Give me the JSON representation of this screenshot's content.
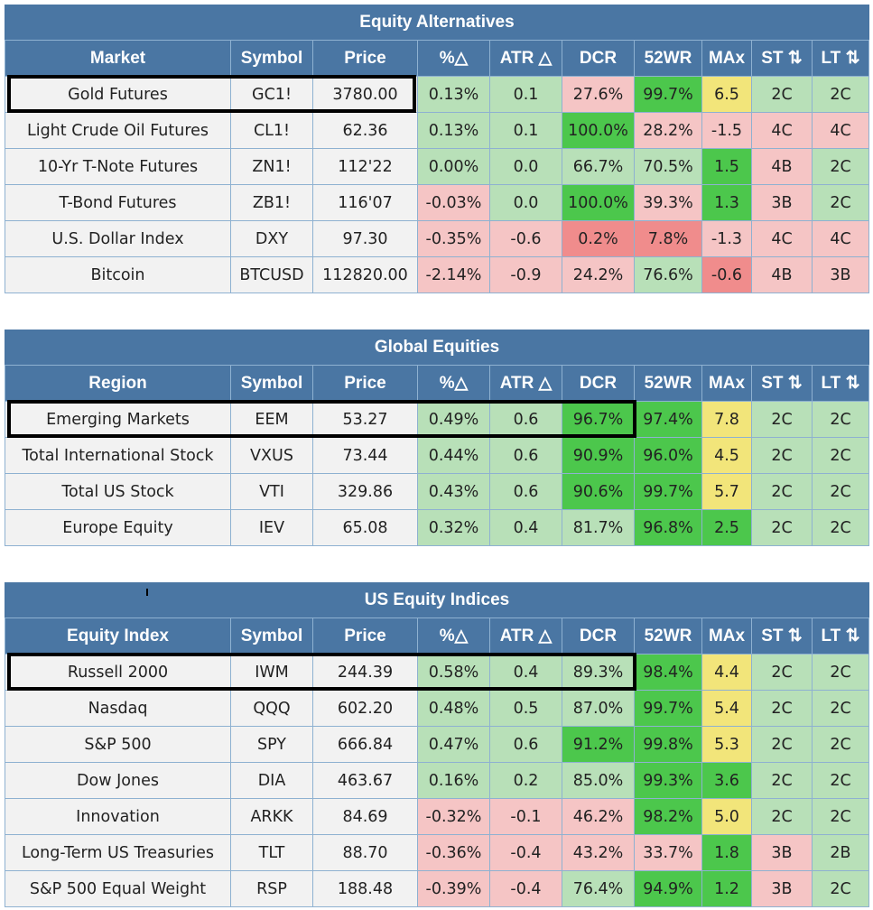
{
  "colors": {
    "header": "#4a76a3",
    "neutral": "#f2f2f2",
    "light_green": "#b8e0b8",
    "green": "#4cc74c",
    "light_red": "#f5c5c5",
    "red": "#f08c8c",
    "yellow": "#f2e57a"
  },
  "sections": [
    {
      "title": "Equity Alternatives",
      "headers": [
        "Market",
        "Symbol",
        "Price",
        "%△",
        "ATR △",
        "DCR",
        "52WR",
        "MAx",
        "ST ⇅",
        "LT ⇅"
      ],
      "rows": [
        {
          "cells": [
            "Gold Futures",
            "GC1!",
            "3780.00",
            "0.13%",
            "0.1",
            "27.6%",
            "99.7%",
            "6.5",
            "2C",
            "2C"
          ],
          "colors": [
            "n",
            "n",
            "n",
            "lg",
            "lg",
            "lr",
            "g",
            "y",
            "lg",
            "lg"
          ]
        },
        {
          "cells": [
            "Light Crude Oil Futures",
            "CL1!",
            "62.36",
            "0.13%",
            "0.1",
            "100.0%",
            "28.2%",
            "-1.5",
            "4C",
            "4C"
          ],
          "colors": [
            "n",
            "n",
            "n",
            "lg",
            "lg",
            "g",
            "lr",
            "lr",
            "lr",
            "lr"
          ]
        },
        {
          "cells": [
            "10-Yr T-Note Futures",
            "ZN1!",
            "112'22",
            "0.00%",
            "0.0",
            "66.7%",
            "70.5%",
            "1.5",
            "4B",
            "2C"
          ],
          "colors": [
            "n",
            "n",
            "n",
            "lg",
            "lg",
            "lg",
            "lg",
            "g",
            "lr",
            "lg"
          ]
        },
        {
          "cells": [
            "T-Bond Futures",
            "ZB1!",
            "116'07",
            "-0.03%",
            "0.0",
            "100.0%",
            "39.3%",
            "1.3",
            "3B",
            "2C"
          ],
          "colors": [
            "n",
            "n",
            "n",
            "lr",
            "lg",
            "g",
            "lr",
            "g",
            "lr",
            "lg"
          ]
        },
        {
          "cells": [
            "U.S. Dollar Index",
            "DXY",
            "97.30",
            "-0.35%",
            "-0.6",
            "0.2%",
            "7.8%",
            "-1.3",
            "4C",
            "4C"
          ],
          "colors": [
            "n",
            "n",
            "n",
            "lr",
            "lr",
            "r",
            "r",
            "lr",
            "lr",
            "lr"
          ]
        },
        {
          "cells": [
            "Bitcoin",
            "BTCUSD",
            "112820.00",
            "-2.14%",
            "-0.9",
            "24.2%",
            "76.6%",
            "-0.6",
            "4B",
            "3B"
          ],
          "colors": [
            "n",
            "n",
            "n",
            "lr",
            "lr",
            "lr",
            "lg",
            "r",
            "lr",
            "lr"
          ]
        }
      ]
    },
    {
      "title": "Global Equities",
      "headers": [
        "Region",
        "Symbol",
        "Price",
        "%△",
        "ATR △",
        "DCR",
        "52WR",
        "MAx",
        "ST ⇅",
        "LT ⇅"
      ],
      "rows": [
        {
          "cells": [
            "Emerging Markets",
            "EEM",
            "53.27",
            "0.49%",
            "0.6",
            "96.7%",
            "97.4%",
            "7.8",
            "2C",
            "2C"
          ],
          "colors": [
            "n",
            "n",
            "n",
            "lg",
            "lg",
            "g",
            "g",
            "y",
            "lg",
            "lg"
          ]
        },
        {
          "cells": [
            "Total International Stock",
            "VXUS",
            "73.44",
            "0.44%",
            "0.6",
            "90.9%",
            "96.0%",
            "4.5",
            "2C",
            "2C"
          ],
          "colors": [
            "n",
            "n",
            "n",
            "lg",
            "lg",
            "g",
            "g",
            "y",
            "lg",
            "lg"
          ]
        },
        {
          "cells": [
            "Total US Stock",
            "VTI",
            "329.86",
            "0.43%",
            "0.6",
            "90.6%",
            "99.7%",
            "5.7",
            "2C",
            "2C"
          ],
          "colors": [
            "n",
            "n",
            "n",
            "lg",
            "lg",
            "g",
            "g",
            "y",
            "lg",
            "lg"
          ]
        },
        {
          "cells": [
            "Europe Equity",
            "IEV",
            "65.08",
            "0.32%",
            "0.4",
            "81.7%",
            "96.8%",
            "2.5",
            "2C",
            "2C"
          ],
          "colors": [
            "n",
            "n",
            "n",
            "lg",
            "lg",
            "lg",
            "g",
            "g",
            "lg",
            "lg"
          ]
        }
      ]
    },
    {
      "title": "US Equity Indices",
      "headers": [
        "Equity Index",
        "Symbol",
        "Price",
        "%△",
        "ATR △",
        "DCR",
        "52WR",
        "MAx",
        "ST ⇅",
        "LT ⇅"
      ],
      "rows": [
        {
          "cells": [
            "Russell 2000",
            "IWM",
            "244.39",
            "0.58%",
            "0.4",
            "89.3%",
            "98.4%",
            "4.4",
            "2C",
            "2C"
          ],
          "colors": [
            "n",
            "n",
            "n",
            "lg",
            "lg",
            "lg",
            "g",
            "y",
            "lg",
            "lg"
          ]
        },
        {
          "cells": [
            "Nasdaq",
            "QQQ",
            "602.20",
            "0.48%",
            "0.5",
            "87.0%",
            "99.7%",
            "5.4",
            "2C",
            "2C"
          ],
          "colors": [
            "n",
            "n",
            "n",
            "lg",
            "lg",
            "lg",
            "g",
            "y",
            "lg",
            "lg"
          ]
        },
        {
          "cells": [
            "S&P 500",
            "SPY",
            "666.84",
            "0.47%",
            "0.6",
            "91.2%",
            "99.8%",
            "5.3",
            "2C",
            "2C"
          ],
          "colors": [
            "n",
            "n",
            "n",
            "lg",
            "lg",
            "g",
            "g",
            "y",
            "lg",
            "lg"
          ]
        },
        {
          "cells": [
            "Dow Jones",
            "DIA",
            "463.67",
            "0.16%",
            "0.2",
            "85.0%",
            "99.3%",
            "3.6",
            "2C",
            "2C"
          ],
          "colors": [
            "n",
            "n",
            "n",
            "lg",
            "lg",
            "lg",
            "g",
            "g",
            "lg",
            "lg"
          ]
        },
        {
          "cells": [
            "Innovation",
            "ARKK",
            "84.69",
            "-0.32%",
            "-0.1",
            "46.2%",
            "98.2%",
            "5.0",
            "2C",
            "2C"
          ],
          "colors": [
            "n",
            "n",
            "n",
            "lr",
            "lr",
            "lr",
            "g",
            "y",
            "lg",
            "lg"
          ]
        },
        {
          "cells": [
            "Long-Term US Treasuries",
            "TLT",
            "88.70",
            "-0.36%",
            "-0.4",
            "43.2%",
            "33.7%",
            "1.8",
            "3B",
            "2B"
          ],
          "colors": [
            "n",
            "n",
            "n",
            "lr",
            "lr",
            "lr",
            "lr",
            "g",
            "lr",
            "lg"
          ]
        },
        {
          "cells": [
            "S&P 500 Equal Weight",
            "RSP",
            "188.48",
            "-0.39%",
            "-0.4",
            "76.4%",
            "94.9%",
            "1.2",
            "3B",
            "2C"
          ],
          "colors": [
            "n",
            "n",
            "n",
            "lr",
            "lr",
            "lg",
            "g",
            "g",
            "lr",
            "lg"
          ]
        }
      ]
    }
  ]
}
